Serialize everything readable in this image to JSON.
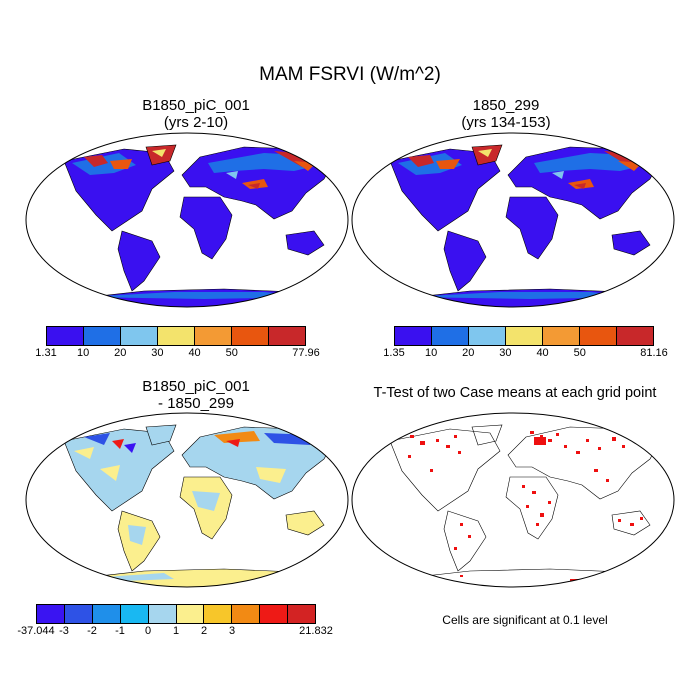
{
  "title": "MAM FSRVI (W/m^2)",
  "panels": [
    {
      "title_line1": "B1850_piC_001",
      "title_line2": "(yrs 2-10)",
      "colorbar": {
        "labels": [
          "1.31",
          "10",
          "20",
          "30",
          "40",
          "50",
          "77.96"
        ],
        "colors": [
          "#3a10f0",
          "#1f6fe6",
          "#7fc6ee",
          "#f3e36c",
          "#f39a34",
          "#e8560f",
          "#c8282a"
        ]
      }
    },
    {
      "title_line1": "1850_299",
      "title_line2": "(yrs 134-153)",
      "colorbar": {
        "labels": [
          "1.35",
          "10",
          "20",
          "30",
          "40",
          "50",
          "81.16"
        ],
        "colors": [
          "#3a10f0",
          "#1f6fe6",
          "#7fc6ee",
          "#f3e36c",
          "#f39a34",
          "#e8560f",
          "#c8282a"
        ]
      }
    },
    {
      "title_line1": "B1850_piC_001",
      "title_line2": "- 1850_299",
      "colorbar": {
        "labels": [
          "-37.044",
          "-3",
          "-2",
          "-1",
          "0",
          "1",
          "2",
          "3",
          "21.832"
        ],
        "colors": [
          "#3a14f2",
          "#2e52e6",
          "#1f8fea",
          "#19b8f2",
          "#a6d6ee",
          "#fbef8e",
          "#f7c62a",
          "#f28a14",
          "#ee1a16",
          "#d32323"
        ]
      }
    },
    {
      "title": "T-Test of two Case means at each grid point"
    }
  ],
  "footnote": "Cells are significant at 0.1 level"
}
